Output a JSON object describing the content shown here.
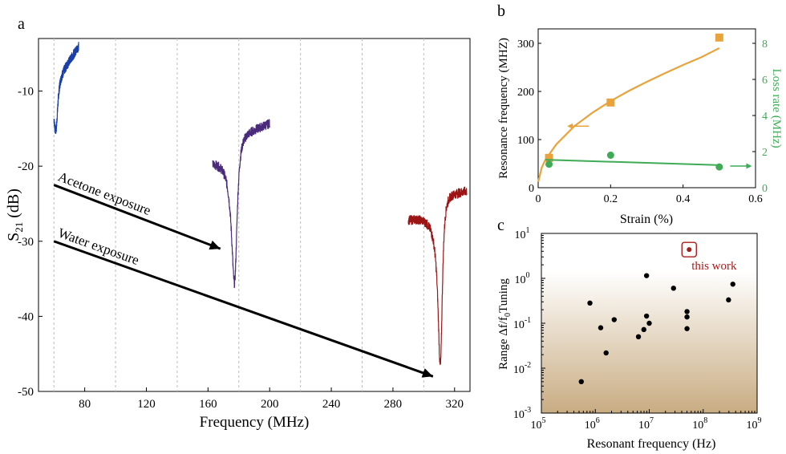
{
  "panels": {
    "a": {
      "label": "a"
    },
    "b": {
      "label": "b"
    },
    "c": {
      "label": "c"
    }
  },
  "chart_data": [
    {
      "id": "a",
      "type": "line",
      "xlabel": "Frequency (MHz)",
      "ylabel": "S21 (dB)",
      "ylabel_main": "S",
      "ylabel_sub": "21",
      "ylabel_unit": " (dB)",
      "xlim": [
        50,
        330
      ],
      "ylim": [
        -50,
        -3
      ],
      "xticks": [
        80,
        120,
        160,
        200,
        240,
        280,
        320
      ],
      "xtick_labels": [
        "80",
        "120",
        "160",
        "200",
        "240",
        "280",
        "320"
      ],
      "yticks": [
        -10,
        -20,
        -30,
        -40,
        -50
      ],
      "ytick_labels": [
        "-10",
        "-20",
        "-30",
        "-40",
        "-50"
      ],
      "dashed_gridlines_x": [
        60,
        100,
        140,
        180,
        220,
        260,
        300
      ],
      "series": [
        {
          "color": "#1a3fa8",
          "f0": 60,
          "f1": 76,
          "fr": 61.5,
          "baseline": -9,
          "slope": 0.33,
          "dip_depth": 6,
          "dip_width": 1.6
        },
        {
          "color": "#4a2a7a",
          "f0": 163,
          "f1": 200,
          "fr": 177.5,
          "baseline": -17,
          "slope": 0.1,
          "dip_depth": 18,
          "dip_width": 2.2
        },
        {
          "color": "#9c1414",
          "f0": 290,
          "f1": 328,
          "fr": 311,
          "baseline": -25,
          "slope": 0.07,
          "dip_depth": 21,
          "dip_width": 1.7
        }
      ],
      "annotations": [
        {
          "text": "Acetone exposure",
          "from": [
            60,
            -22.5
          ],
          "to": [
            168,
            -31
          ]
        },
        {
          "text": "Water exposure",
          "from": [
            60,
            -30
          ],
          "to": [
            306,
            -48
          ]
        }
      ]
    },
    {
      "id": "b",
      "type": "scatter",
      "xlabel": "Strain (%)",
      "ylabel": "Resonance frequency (MHZ)",
      "ylabel_right": "Loss rate (MHz)",
      "xlim": [
        0,
        0.6
      ],
      "ylim": [
        0,
        330
      ],
      "ylim_right": [
        0,
        8.8
      ],
      "xticks": [
        0,
        0.2,
        0.4,
        0.6
      ],
      "xtick_labels": [
        "0",
        "0.2",
        "0.4",
        "0.6"
      ],
      "yticks": [
        0,
        100,
        200,
        300
      ],
      "ytick_labels": [
        "0",
        "100",
        "200",
        "300"
      ],
      "yticks_right": [
        0,
        2,
        4,
        6,
        8
      ],
      "ytick_labels_right": [
        "0",
        "2",
        "4",
        "6",
        "8"
      ],
      "series": [
        {
          "axis": "left",
          "marker": "square",
          "color": "#e8a33c",
          "x": [
            0.03,
            0.2,
            0.5
          ],
          "y": [
            62,
            177,
            312
          ],
          "fit": "sqrt",
          "fit_y": [
            [
              0,
              12
            ],
            [
              0.01,
              42
            ],
            [
              0.02,
              58
            ],
            [
              0.05,
              90
            ],
            [
              0.1,
              128
            ],
            [
              0.15,
              156
            ],
            [
              0.2,
              180
            ],
            [
              0.25,
              201
            ],
            [
              0.3,
              220
            ],
            [
              0.35,
              238
            ],
            [
              0.4,
              255
            ],
            [
              0.45,
              271
            ],
            [
              0.5,
              290
            ]
          ]
        },
        {
          "axis": "right",
          "marker": "circle",
          "color": "#3fab57",
          "x": [
            0.03,
            0.2,
            0.5
          ],
          "y": [
            1.3,
            1.8,
            1.15
          ],
          "fit_y": [
            [
              0.02,
              1.55
            ],
            [
              0.5,
              1.25
            ]
          ]
        }
      ]
    },
    {
      "id": "c",
      "type": "scatter",
      "xlabel": "Resonant frequency (Hz)",
      "ylabel": "Range Δf/f₀Tuning",
      "ylabel_a": "Range Δf/f",
      "ylabel_sub": "0",
      "ylabel_b": "Tuning",
      "xscale": "log",
      "yscale": "log",
      "xlim_exp": [
        5,
        9
      ],
      "ylim_exp": [
        -3,
        1
      ],
      "xtick_base": "10",
      "xtick_exps": [
        "5",
        "6",
        "7",
        "8",
        "9"
      ],
      "ytick_base": "10",
      "ytick_exps": [
        "-3",
        "-2",
        "-1",
        "0",
        "1"
      ],
      "shaded_region": {
        "y_max": 1.5,
        "color_top": "#ffffff",
        "color_bottom": "#c8ac82"
      },
      "points_log10": [
        [
          5.74,
          -2.3
        ],
        [
          5.9,
          -0.55
        ],
        [
          6.1,
          -1.1
        ],
        [
          6.2,
          -1.66
        ],
        [
          6.35,
          -0.92
        ],
        [
          6.8,
          -1.3
        ],
        [
          6.9,
          -1.14
        ],
        [
          6.95,
          -0.84
        ],
        [
          6.95,
          0.06
        ],
        [
          7.0,
          -1.0
        ],
        [
          7.45,
          -0.22
        ],
        [
          7.7,
          -0.74
        ],
        [
          7.7,
          -0.86
        ],
        [
          7.7,
          -1.12
        ],
        [
          8.47,
          -0.48
        ],
        [
          8.55,
          -0.13
        ]
      ],
      "highlight": {
        "label": "this work",
        "log10": [
          7.74,
          0.64
        ],
        "color": "#a81c1c"
      }
    }
  ]
}
